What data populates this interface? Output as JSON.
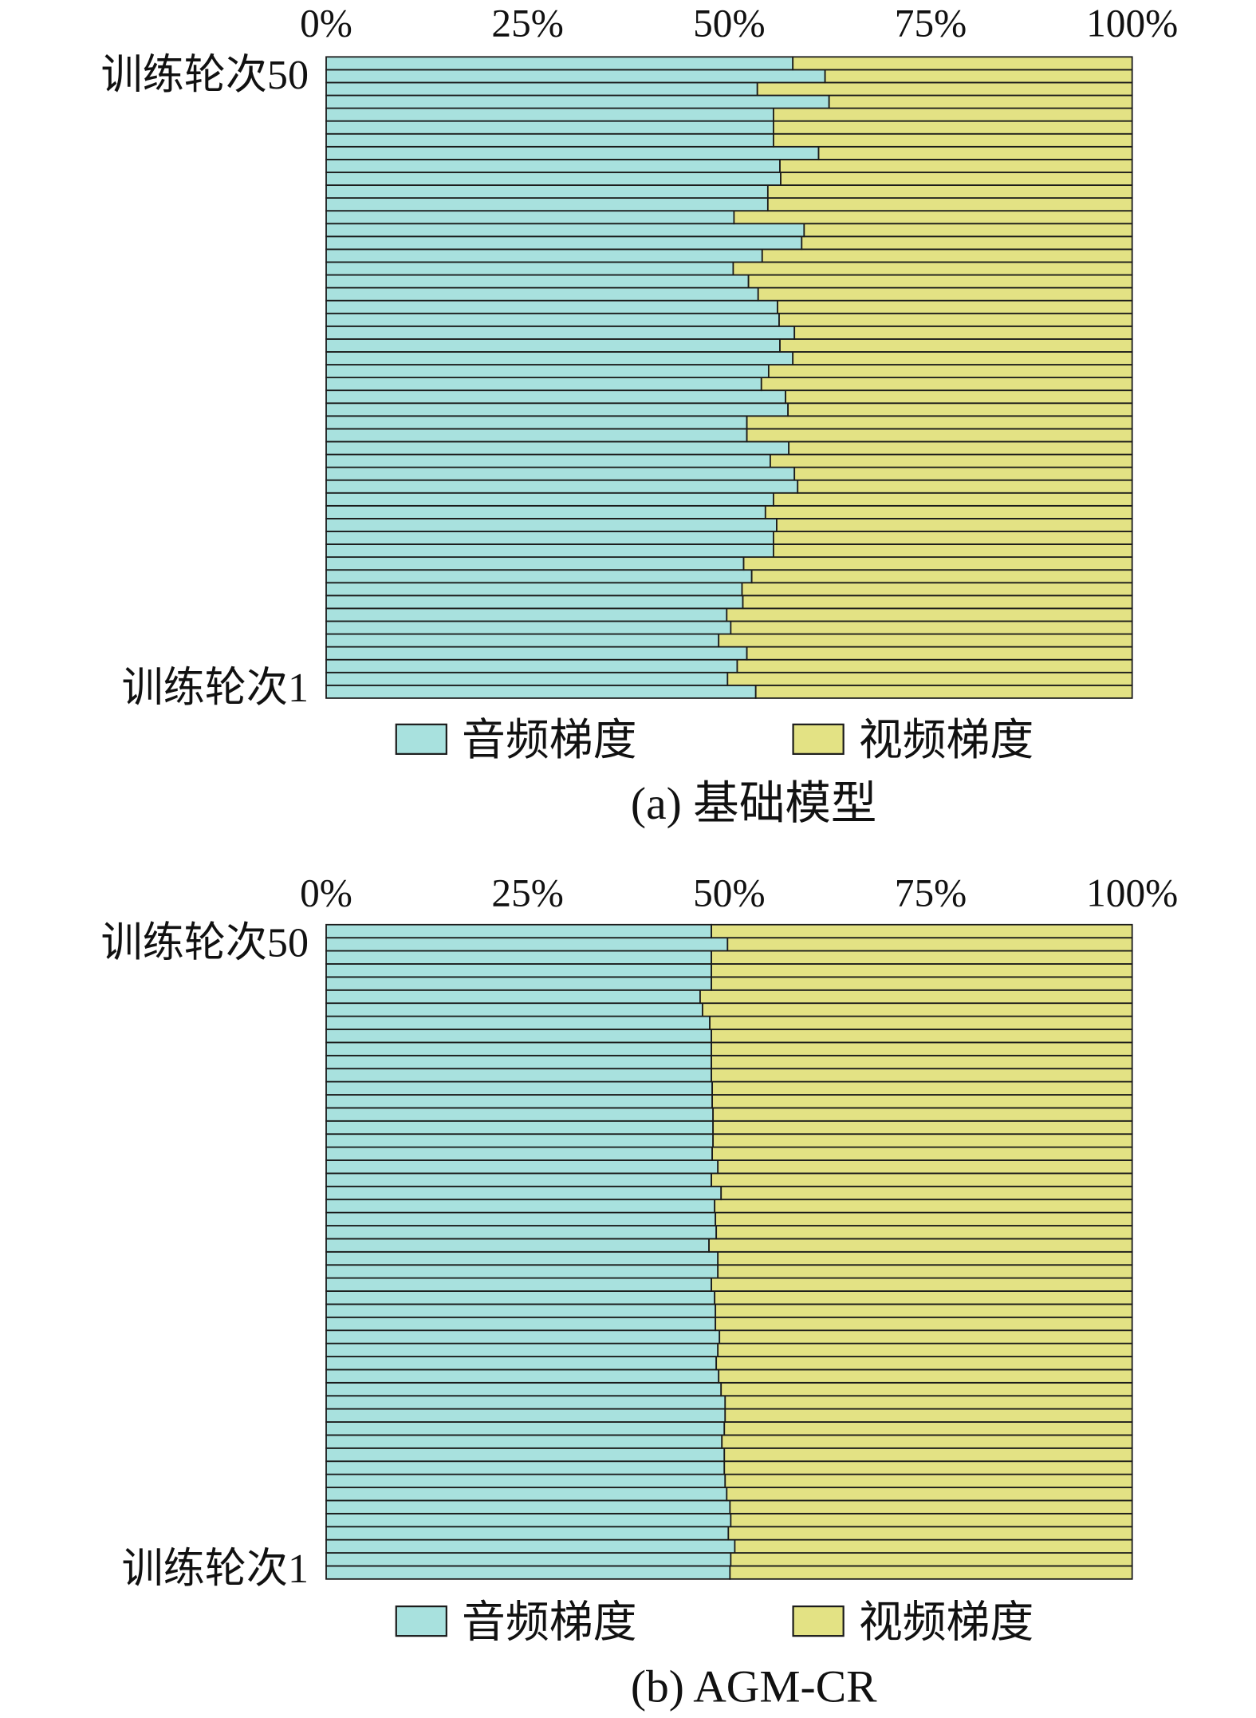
{
  "chart_data": [
    {
      "type": "bar",
      "orientation": "horizontal",
      "stacked": true,
      "caption": "(a) 基础模型",
      "x_axis_position": "top",
      "xlim": [
        0,
        100
      ],
      "x_ticks": [
        0,
        25,
        50,
        75,
        100
      ],
      "x_tick_labels": [
        "0%",
        "25%",
        "50%",
        "75%",
        "100%"
      ],
      "y_ticks": [
        {
          "epoch": 50,
          "label": "训练轮次50"
        },
        {
          "epoch": 1,
          "label": "训练轮次1"
        }
      ],
      "epochs": [
        1,
        2,
        3,
        4,
        5,
        6,
        7,
        8,
        9,
        10,
        11,
        12,
        13,
        14,
        15,
        16,
        17,
        18,
        19,
        20,
        21,
        22,
        23,
        24,
        25,
        26,
        27,
        28,
        29,
        30,
        31,
        32,
        33,
        34,
        35,
        36,
        37,
        38,
        39,
        40,
        41,
        42,
        43,
        44,
        45,
        46,
        47,
        48,
        49,
        50
      ],
      "series": [
        {
          "name": "音频梯度",
          "color": "#a8e1de",
          "values": [
            53.3,
            49.8,
            51.0,
            52.2,
            48.7,
            50.2,
            49.7,
            51.7,
            51.6,
            52.8,
            51.8,
            55.5,
            55.5,
            55.9,
            54.5,
            55.5,
            58.5,
            58.1,
            55.1,
            57.4,
            52.2,
            52.2,
            57.3,
            57.0,
            54.0,
            54.9,
            57.9,
            56.3,
            58.1,
            56.2,
            56.0,
            53.6,
            52.4,
            50.5,
            54.1,
            59.0,
            59.3,
            50.6,
            54.8,
            54.8,
            56.4,
            56.3,
            61.1,
            55.5,
            55.5,
            55.5,
            62.4,
            53.5,
            61.9,
            57.9
          ]
        },
        {
          "name": "视频梯度",
          "color": "#e3e284",
          "values": [
            46.7,
            50.2,
            49.0,
            47.8,
            51.3,
            49.8,
            50.3,
            48.3,
            48.4,
            47.2,
            48.2,
            44.5,
            44.5,
            44.1,
            45.5,
            44.5,
            41.5,
            41.9,
            44.9,
            42.6,
            47.8,
            47.8,
            42.7,
            43.0,
            46.0,
            45.1,
            42.1,
            43.7,
            41.9,
            43.8,
            44.0,
            46.4,
            47.6,
            49.5,
            45.9,
            41.0,
            40.7,
            49.4,
            45.2,
            45.2,
            43.6,
            43.7,
            38.9,
            44.5,
            44.5,
            44.5,
            37.6,
            46.5,
            38.1,
            42.1
          ]
        }
      ],
      "legend": "bottom",
      "grid": false
    },
    {
      "type": "bar",
      "orientation": "horizontal",
      "stacked": true,
      "caption": "(b) AGM-CR",
      "x_axis_position": "top",
      "xlim": [
        0,
        100
      ],
      "x_ticks": [
        0,
        25,
        50,
        75,
        100
      ],
      "x_tick_labels": [
        "0%",
        "25%",
        "50%",
        "75%",
        "100%"
      ],
      "y_ticks": [
        {
          "epoch": 50,
          "label": "训练轮次50"
        },
        {
          "epoch": 1,
          "label": "训练轮次1"
        }
      ],
      "epochs": [
        1,
        2,
        3,
        4,
        5,
        6,
        7,
        8,
        9,
        10,
        11,
        12,
        13,
        14,
        15,
        16,
        17,
        18,
        19,
        20,
        21,
        22,
        23,
        24,
        25,
        26,
        27,
        28,
        29,
        30,
        31,
        32,
        33,
        34,
        35,
        36,
        37,
        38,
        39,
        40,
        41,
        42,
        43,
        44,
        45,
        46,
        47,
        48,
        49,
        50
      ],
      "series": [
        {
          "name": "音频梯度",
          "color": "#a8e1de",
          "values": [
            50.1,
            50.2,
            50.7,
            49.9,
            50.2,
            50.1,
            49.7,
            49.5,
            49.4,
            49.4,
            49.1,
            49.4,
            49.5,
            49.5,
            49.0,
            48.7,
            48.4,
            48.6,
            48.8,
            48.3,
            48.3,
            48.2,
            47.8,
            48.6,
            48.6,
            47.5,
            48.4,
            48.3,
            48.2,
            49.0,
            47.8,
            48.6,
            47.9,
            48.0,
            48.0,
            48.0,
            47.9,
            47.9,
            47.8,
            47.8,
            47.8,
            47.8,
            47.6,
            46.7,
            46.4,
            47.8,
            47.8,
            47.8,
            49.8,
            47.8
          ]
        },
        {
          "name": "视频梯度",
          "color": "#e3e284",
          "values": [
            49.9,
            49.8,
            49.3,
            50.1,
            49.8,
            49.9,
            50.3,
            50.5,
            50.6,
            50.6,
            50.9,
            50.6,
            50.5,
            50.5,
            51.0,
            51.3,
            51.6,
            51.4,
            51.2,
            51.7,
            51.7,
            51.8,
            52.2,
            51.4,
            51.4,
            52.5,
            51.6,
            51.7,
            51.8,
            51.0,
            52.2,
            51.4,
            52.1,
            52.0,
            52.0,
            52.0,
            52.1,
            52.1,
            52.2,
            52.2,
            52.2,
            52.2,
            52.4,
            53.3,
            53.6,
            52.2,
            52.2,
            52.2,
            50.2,
            52.2
          ]
        }
      ],
      "legend": "bottom",
      "grid": false
    }
  ]
}
